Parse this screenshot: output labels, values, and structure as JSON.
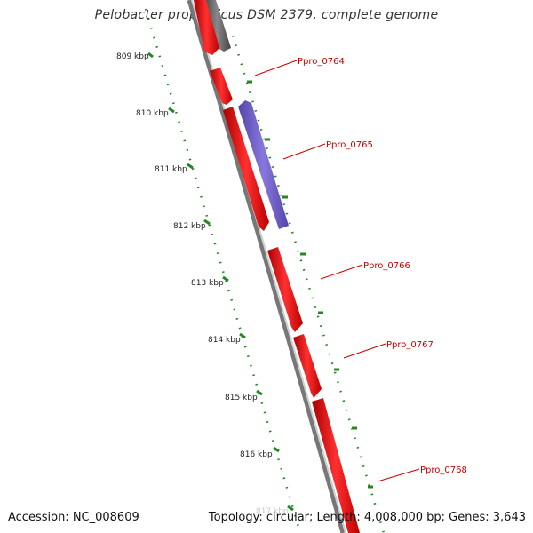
{
  "title": "Pelobacter propionicus DSM 2379, complete genome",
  "footer": {
    "accession": "Accession: NC_008609",
    "info": "Topology: circular; Length: 4,008,000 bp; Genes: 3,643"
  },
  "scale": {
    "labels": [
      "809 kbp",
      "810 kbp",
      "811 kbp",
      "812 kbp",
      "813 kbp",
      "814 kbp",
      "815 kbp",
      "816 kbp"
    ],
    "faded_label": "817 kbp"
  },
  "genes": [
    {
      "name": "Ppro_0764",
      "strand": "forward",
      "color": "#ee1111"
    },
    {
      "name": "Ppro_0765",
      "strand": "reverse",
      "color": "#7766cc"
    },
    {
      "name": "Ppro_0766",
      "strand": "forward",
      "color": "#ee1111"
    },
    {
      "name": "Ppro_0767",
      "strand": "forward",
      "color": "#ee1111"
    },
    {
      "name": "Ppro_0768",
      "strand": "forward",
      "color": "#ee1111"
    }
  ],
  "colors": {
    "gene_forward": "#ee1111",
    "gene_reverse": "#7766cc",
    "gene_other": "#555555",
    "backbone": "#777777",
    "scale": "#228822",
    "label": "#cc0000"
  }
}
